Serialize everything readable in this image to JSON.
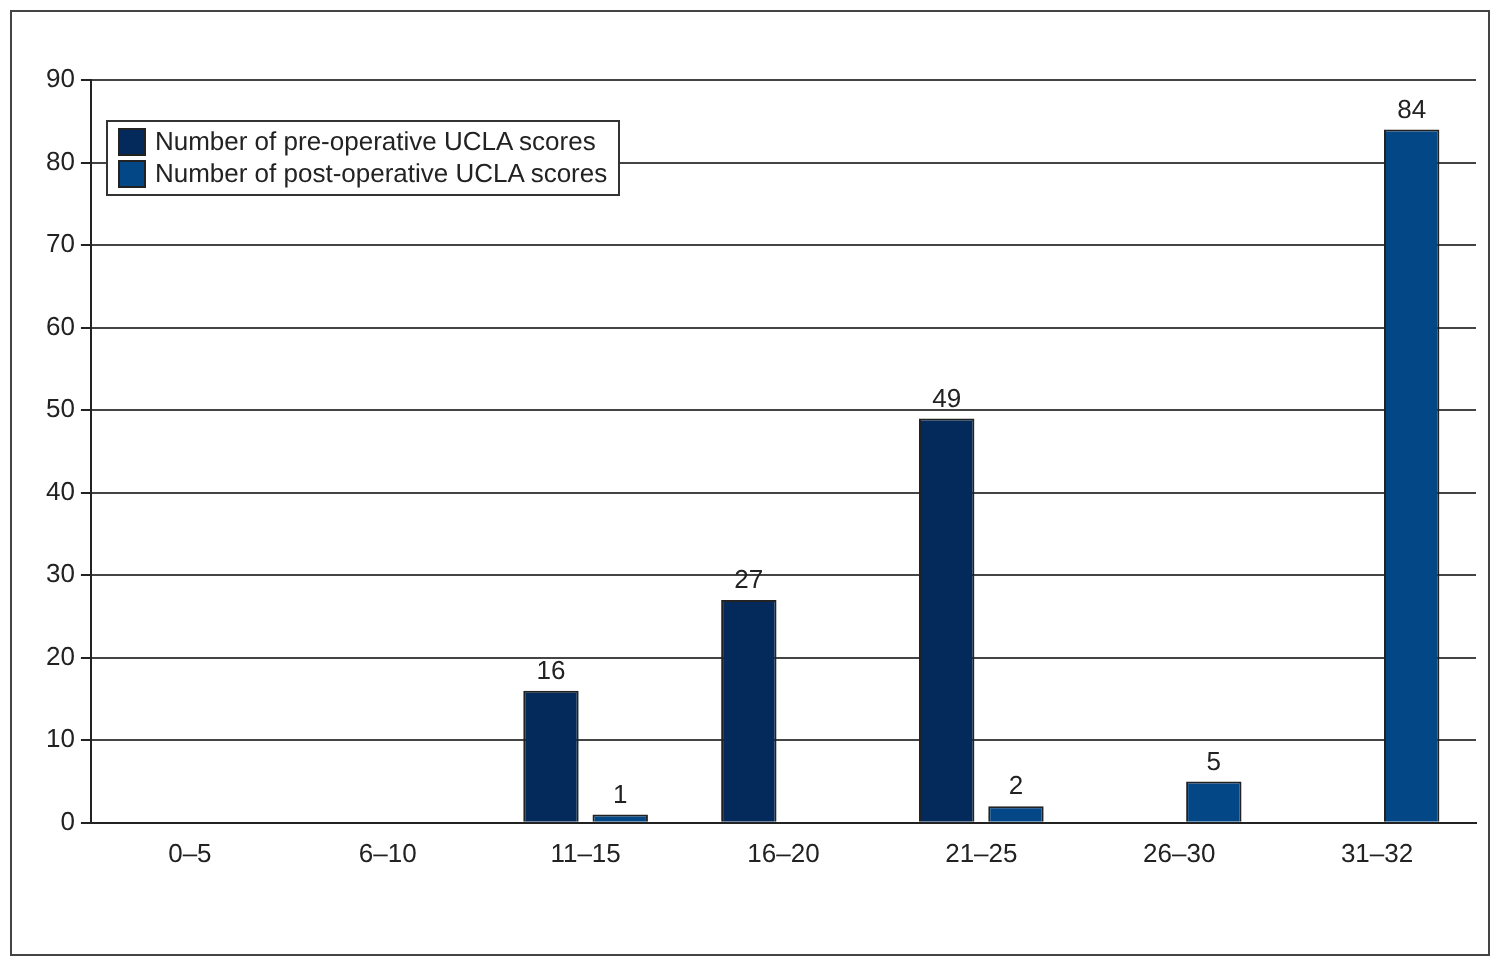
{
  "chart_data": {
    "type": "bar",
    "categories": [
      "0–5",
      "6–10",
      "11–15",
      "16–20",
      "21–25",
      "26–30",
      "31–32"
    ],
    "series": [
      {
        "name": "Number of pre-operative UCLA scores",
        "color": "#032a5a",
        "values": [
          null,
          null,
          16,
          27,
          49,
          null,
          null
        ]
      },
      {
        "name": "Number of post-operative UCLA scores",
        "color": "#034787",
        "values": [
          null,
          null,
          1,
          null,
          2,
          5,
          84
        ]
      }
    ],
    "ylim": [
      0,
      90
    ],
    "yticks": [
      0,
      10,
      20,
      30,
      40,
      50,
      60,
      70,
      80,
      90
    ],
    "grid": "y",
    "legend": "top left",
    "data_labels": true
  }
}
